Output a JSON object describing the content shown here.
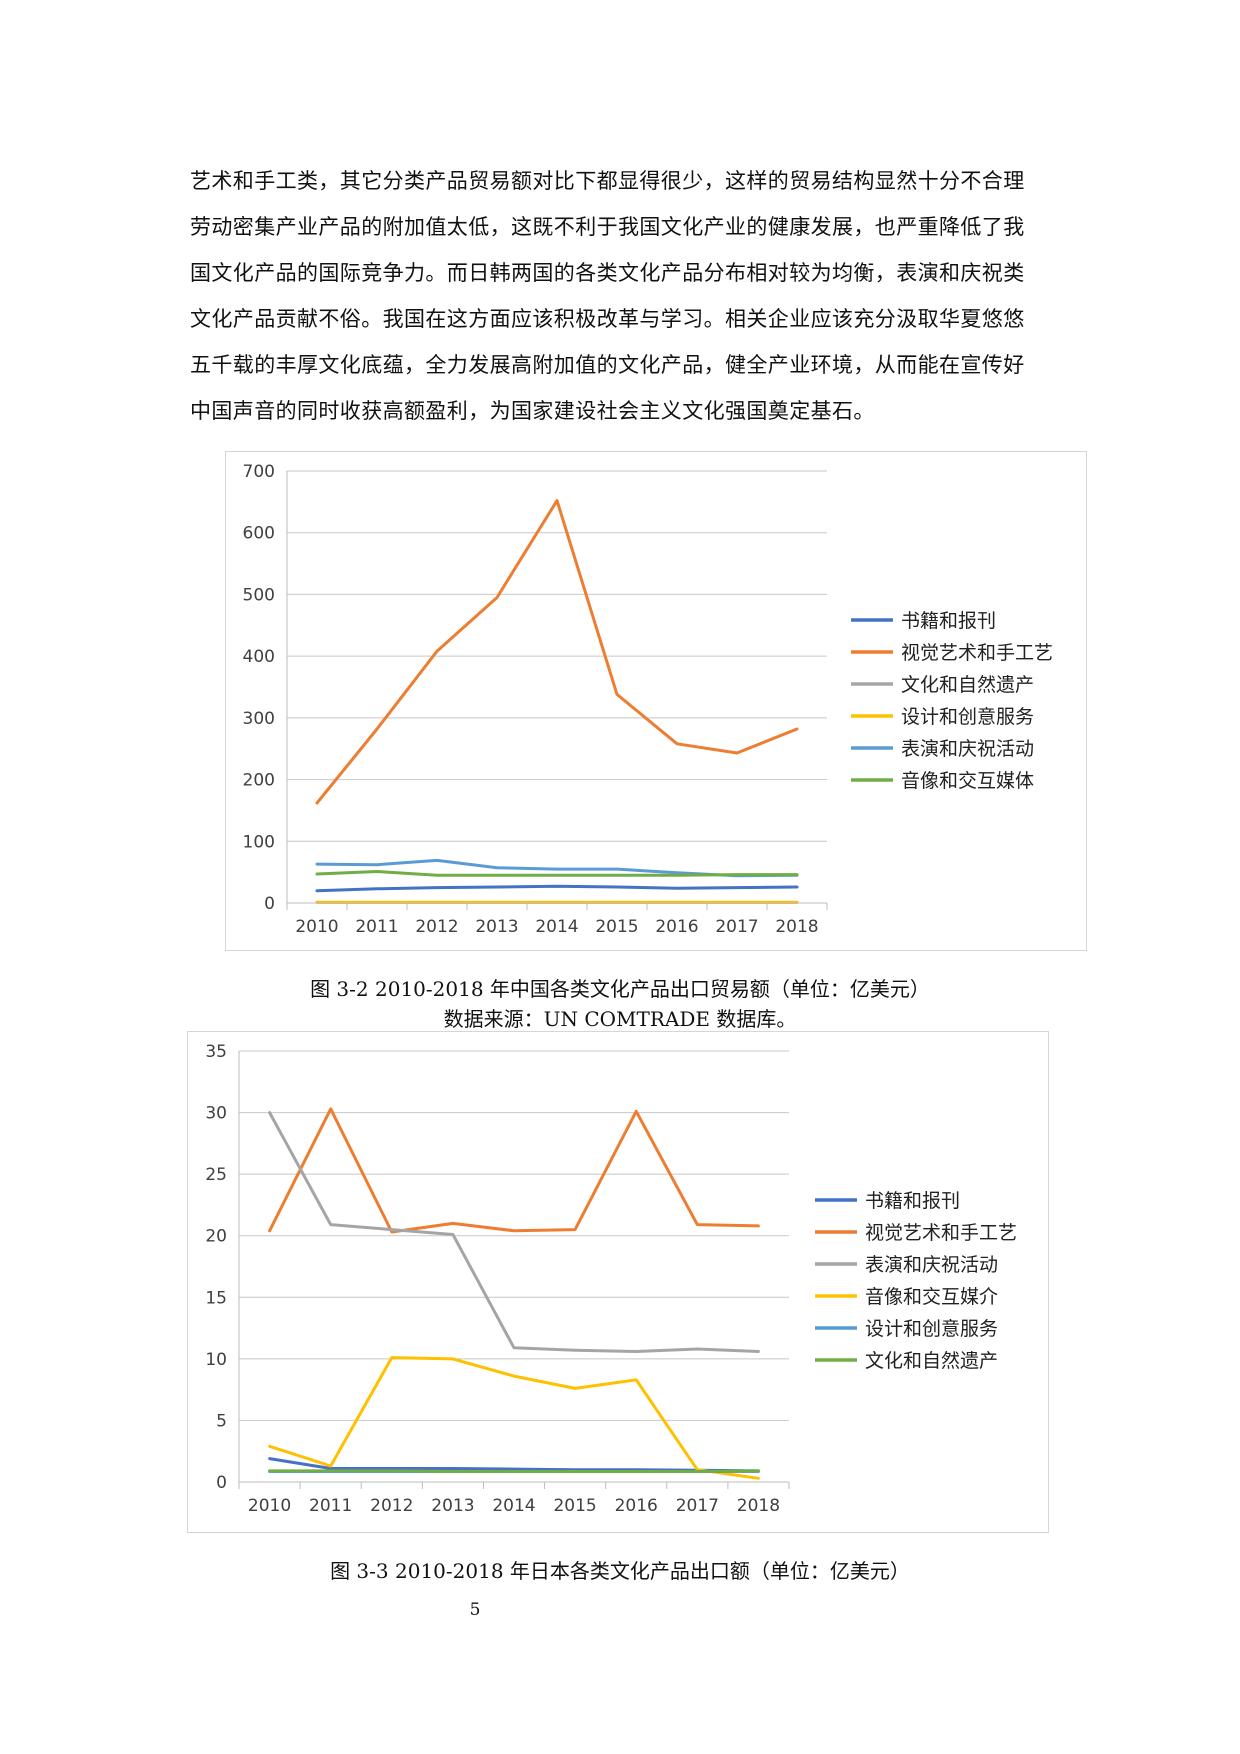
{
  "body_text": {
    "lines": [
      "艺术和手工类，其它分类产品贸易额对比下都显得很少，这样的贸易结构显然十分不合理",
      "劳动密集产业产品的附加值太低，这既不利于我国文化产业的健康发展，也严重降低了我",
      "国文化产品的国际竞争力。而日韩两国的各类文化产品分布相对较为均衡，表演和庆祝类",
      "文化产品贡献不俗。我国在这方面应该积极改革与学习。相关企业应该充分汲取华夏悠悠",
      "五千载的丰厚文化底蕴，全力发展高附加值的文化产品，健全产业环境，从而能在宣传好",
      "中国声音的同时收获高额盈利，为国家建设社会主义文化强国奠定基石。"
    ]
  },
  "figure1": {
    "caption": "图 3-2 2010-2018 年中国各类文化产品出口贸易额（单位：亿美元）",
    "source": "数据来源：UN COMTRADE 数据库。"
  },
  "figure2": {
    "caption": "图 3-3 2010-2018 年日本各类文化产品出口额（单位：亿美元）"
  },
  "page_number": "5",
  "chart_data": [
    {
      "type": "line",
      "title": "",
      "xlabel": "",
      "ylabel": "",
      "x": [
        "2010",
        "2011",
        "2012",
        "2013",
        "2014",
        "2015",
        "2016",
        "2017",
        "2018"
      ],
      "ylim": [
        0,
        700
      ],
      "yticks": [
        0,
        100,
        200,
        300,
        400,
        500,
        600,
        700
      ],
      "grid": true,
      "legend": "right",
      "series": [
        {
          "name": "书籍和报刊",
          "color": "#4472c4",
          "values": [
            20,
            23,
            25,
            26,
            27,
            26,
            24,
            25,
            26
          ]
        },
        {
          "name": "视觉艺术和手工艺",
          "color": "#ed7d31",
          "values": [
            162,
            282,
            408,
            495,
            652,
            338,
            258,
            243,
            282
          ]
        },
        {
          "name": "文化和自然遗产",
          "color": "#a5a5a5",
          "values": [
            1,
            1,
            1,
            1,
            1,
            1,
            1,
            1,
            1
          ]
        },
        {
          "name": "设计和创意服务",
          "color": "#ffc000",
          "values": [
            1,
            1,
            1,
            1,
            1,
            1,
            1,
            1,
            1
          ]
        },
        {
          "name": "表演和庆祝活动",
          "color": "#5b9bd5",
          "values": [
            63,
            62,
            69,
            57,
            55,
            55,
            49,
            44,
            45
          ]
        },
        {
          "name": "音像和交互媒体",
          "color": "#70ad47",
          "values": [
            47,
            51,
            45,
            45,
            45,
            45,
            45,
            46,
            46
          ]
        }
      ]
    },
    {
      "type": "line",
      "title": "",
      "xlabel": "",
      "ylabel": "",
      "x": [
        "2010",
        "2011",
        "2012",
        "2013",
        "2014",
        "2015",
        "2016",
        "2017",
        "2018"
      ],
      "ylim": [
        0,
        35
      ],
      "yticks": [
        0,
        5,
        10,
        15,
        20,
        25,
        30,
        35
      ],
      "grid": true,
      "legend": "right",
      "series": [
        {
          "name": "书籍和报刊",
          "color": "#4472c4",
          "values": [
            1.9,
            1.1,
            1.1,
            1.1,
            1.05,
            1.0,
            1.0,
            0.95,
            0.9
          ]
        },
        {
          "name": "视觉艺术和手工艺",
          "color": "#ed7d31",
          "values": [
            20.4,
            30.3,
            20.3,
            21.0,
            20.4,
            20.5,
            30.1,
            20.9,
            20.8
          ]
        },
        {
          "name": "表演和庆祝活动",
          "color": "#a5a5a5",
          "values": [
            30.0,
            20.9,
            20.5,
            20.1,
            10.9,
            10.7,
            10.6,
            10.8,
            10.6
          ]
        },
        {
          "name": "音像和交互媒介",
          "color": "#ffc000",
          "values": [
            2.9,
            1.3,
            10.1,
            10.0,
            8.6,
            7.6,
            8.3,
            1.0,
            0.3
          ]
        },
        {
          "name": "设计和创意服务",
          "color": "#5b9bd5",
          "values": [
            0.85,
            0.85,
            0.85,
            0.85,
            0.85,
            0.85,
            0.85,
            0.85,
            0.85
          ]
        },
        {
          "name": "文化和自然遗产",
          "color": "#70ad47",
          "values": [
            0.9,
            0.9,
            0.9,
            0.85,
            0.85,
            0.85,
            0.85,
            0.85,
            0.9
          ]
        }
      ]
    }
  ]
}
